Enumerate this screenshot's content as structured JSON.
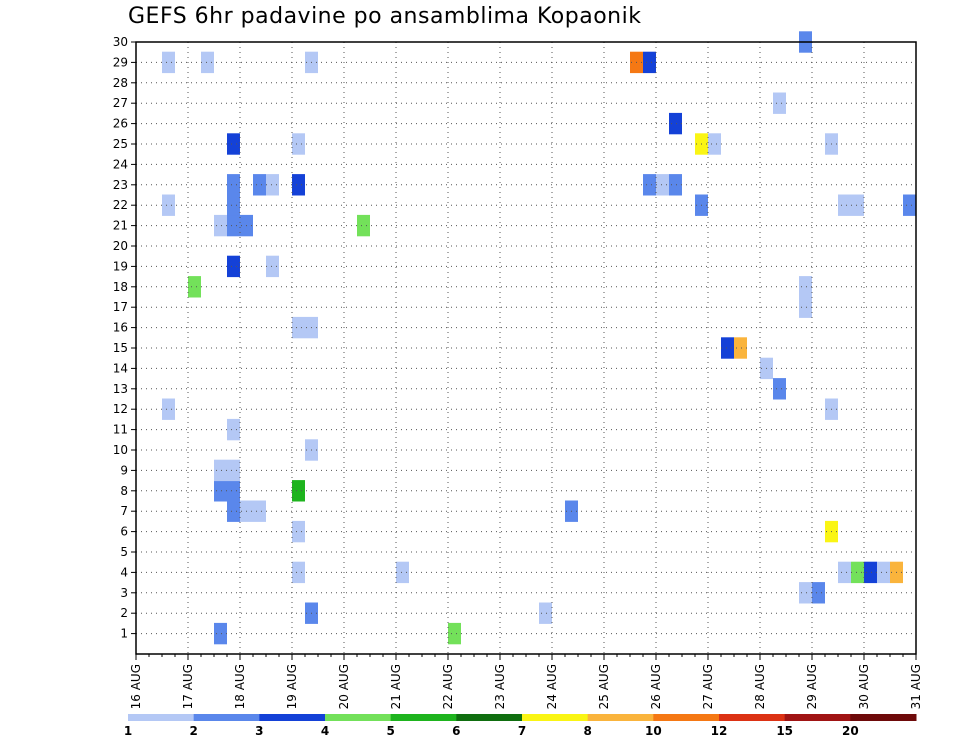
{
  "chart_data": {
    "type": "heatmap",
    "title": "GEFS 6hr padavine po ansamblima Kopaonik",
    "xlabel": "",
    "ylabel": "",
    "x_ticks": [
      "16 AUG",
      "17 AUG",
      "18 AUG",
      "19 AUG",
      "20 AUG",
      "21 AUG",
      "22 AUG",
      "23 AUG",
      "24 AUG",
      "25 AUG",
      "26 AUG",
      "27 AUG",
      "28 AUG",
      "29 AUG",
      "30 AUG",
      "31 AUG"
    ],
    "xlim": [
      0,
      60
    ],
    "y_ticks": [
      1,
      2,
      3,
      4,
      5,
      6,
      7,
      8,
      9,
      10,
      11,
      12,
      13,
      14,
      15,
      16,
      17,
      18,
      19,
      20,
      21,
      22,
      23,
      24,
      25,
      26,
      27,
      28,
      29,
      30
    ],
    "ylim": [
      0,
      30
    ],
    "grid": true,
    "legend": {
      "placement": "bottom",
      "labels": [
        "1",
        "2",
        "3",
        "4",
        "5",
        "6",
        "7",
        "8",
        "10",
        "12",
        "15",
        "20"
      ],
      "colors": [
        "#b4c8f5",
        "#5a87eb",
        "#1441d7",
        "#73e15a",
        "#1eb41e",
        "#0f6e0f",
        "#faf514",
        "#fab43c",
        "#f57814",
        "#dc3214",
        "#a01414",
        "#6e0a0a"
      ]
    },
    "level_colors": {
      "1": "#b4c8f5",
      "2": "#5a87eb",
      "3": "#1441d7",
      "4": "#73e15a",
      "5": "#1eb41e",
      "6": "#0f6e0f",
      "7": "#faf514",
      "8": "#fab43c",
      "10": "#f57814",
      "12": "#dc3214",
      "15": "#a01414",
      "20": "#6e0a0a"
    },
    "cells": [
      {
        "t": 6,
        "m": 1,
        "v": 2
      },
      {
        "t": 24,
        "m": 1,
        "v": 4
      },
      {
        "t": 13,
        "m": 2,
        "v": 2
      },
      {
        "t": 31,
        "m": 2,
        "v": 1
      },
      {
        "t": 51,
        "m": 3,
        "v": 1
      },
      {
        "t": 52,
        "m": 3,
        "v": 2
      },
      {
        "t": 12,
        "m": 4,
        "v": 1
      },
      {
        "t": 20,
        "m": 4,
        "v": 1
      },
      {
        "t": 54,
        "m": 4,
        "v": 1
      },
      {
        "t": 55,
        "m": 4,
        "v": 4
      },
      {
        "t": 56,
        "m": 4,
        "v": 3
      },
      {
        "t": 57,
        "m": 4,
        "v": 1
      },
      {
        "t": 58,
        "m": 4,
        "v": 8
      },
      {
        "t": 12,
        "m": 6,
        "v": 1
      },
      {
        "t": 53,
        "m": 6,
        "v": 7
      },
      {
        "t": 7,
        "m": 7,
        "v": 2
      },
      {
        "t": 8,
        "m": 7,
        "v": 1
      },
      {
        "t": 9,
        "m": 7,
        "v": 1
      },
      {
        "t": 33,
        "m": 7,
        "v": 2
      },
      {
        "t": 6,
        "m": 8,
        "v": 2
      },
      {
        "t": 7,
        "m": 8,
        "v": 2
      },
      {
        "t": 12,
        "m": 8,
        "v": 5
      },
      {
        "t": 6,
        "m": 9,
        "v": 1
      },
      {
        "t": 7,
        "m": 9,
        "v": 1
      },
      {
        "t": 13,
        "m": 10,
        "v": 1
      },
      {
        "t": 7,
        "m": 11,
        "v": 1
      },
      {
        "t": 2,
        "m": 12,
        "v": 1
      },
      {
        "t": 53,
        "m": 12,
        "v": 1
      },
      {
        "t": 49,
        "m": 13,
        "v": 2
      },
      {
        "t": 48,
        "m": 14,
        "v": 1
      },
      {
        "t": 45,
        "m": 15,
        "v": 3
      },
      {
        "t": 46,
        "m": 15,
        "v": 8
      },
      {
        "t": 12,
        "m": 16,
        "v": 1
      },
      {
        "t": 13,
        "m": 16,
        "v": 1
      },
      {
        "t": 51,
        "m": 17,
        "v": 1
      },
      {
        "t": 4,
        "m": 18,
        "v": 4
      },
      {
        "t": 51,
        "m": 18,
        "v": 1
      },
      {
        "t": 10,
        "m": 19,
        "v": 1
      },
      {
        "t": 7,
        "m": 19,
        "v": 3
      },
      {
        "t": 6,
        "m": 21,
        "v": 1
      },
      {
        "t": 7,
        "m": 21,
        "v": 2
      },
      {
        "t": 8,
        "m": 21,
        "v": 2
      },
      {
        "t": 17,
        "m": 21,
        "v": 4
      },
      {
        "t": 2,
        "m": 22,
        "v": 1
      },
      {
        "t": 7,
        "m": 22,
        "v": 2
      },
      {
        "t": 43,
        "m": 22,
        "v": 2
      },
      {
        "t": 54,
        "m": 22,
        "v": 1
      },
      {
        "t": 55,
        "m": 22,
        "v": 1
      },
      {
        "t": 59,
        "m": 22,
        "v": 2
      },
      {
        "t": 7,
        "m": 23,
        "v": 2
      },
      {
        "t": 9,
        "m": 23,
        "v": 2
      },
      {
        "t": 10,
        "m": 23,
        "v": 1
      },
      {
        "t": 12,
        "m": 23,
        "v": 3
      },
      {
        "t": 39,
        "m": 23,
        "v": 2
      },
      {
        "t": 40,
        "m": 23,
        "v": 1
      },
      {
        "t": 41,
        "m": 23,
        "v": 2
      },
      {
        "t": 7,
        "m": 25,
        "v": 3
      },
      {
        "t": 12,
        "m": 25,
        "v": 1
      },
      {
        "t": 43,
        "m": 25,
        "v": 7
      },
      {
        "t": 44,
        "m": 25,
        "v": 1
      },
      {
        "t": 53,
        "m": 25,
        "v": 1
      },
      {
        "t": 41,
        "m": 26,
        "v": 3
      },
      {
        "t": 49,
        "m": 27,
        "v": 1
      },
      {
        "t": 2,
        "m": 29,
        "v": 1
      },
      {
        "t": 5,
        "m": 29,
        "v": 1
      },
      {
        "t": 13,
        "m": 29,
        "v": 1
      },
      {
        "t": 38,
        "m": 29,
        "v": 10
      },
      {
        "t": 39,
        "m": 29,
        "v": 3
      },
      {
        "t": 51,
        "m": 30,
        "v": 2
      }
    ]
  }
}
